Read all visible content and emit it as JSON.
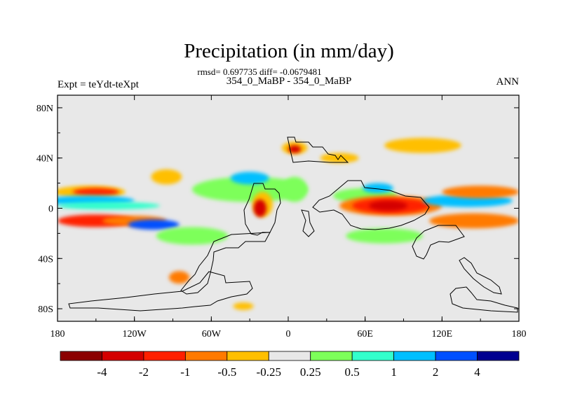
{
  "chart_data": {
    "type": "heatmap",
    "title": "Precipitation (in mm/day)",
    "stats_text": "rmsd= 0.697735 diff= -0.0679481",
    "subtitle": "354_0_MaBP - 354_0_MaBP",
    "left_label": "Expt = teYdt-teXpt",
    "right_label": "ANN",
    "x_axis": {
      "range": [
        -180,
        180
      ],
      "ticks": [
        "180",
        "120W",
        "60W",
        "0",
        "60E",
        "120E",
        "180"
      ]
    },
    "y_axis": {
      "range": [
        -90,
        90
      ],
      "ticks": [
        "80N",
        "40N",
        "0",
        "40S",
        "80S"
      ]
    },
    "colorbar": {
      "levels": [
        "-4",
        "-2",
        "-1",
        "-0.5",
        "-0.25",
        "0.25",
        "0.5",
        "1",
        "2",
        "4"
      ],
      "colors": [
        "#8b0000",
        "#d40000",
        "#ff2000",
        "#ff7a00",
        "#ffbf00",
        "#e8e8e8",
        "#7dff5a",
        "#33ffcc",
        "#00bfff",
        "#0050ff",
        "#000090"
      ]
    },
    "anomalies": [
      {
        "lon": -155,
        "lat": 13,
        "rx": 28,
        "ry": 5,
        "level": 4
      },
      {
        "lon": -150,
        "lat": 13,
        "rx": 18,
        "ry": 3,
        "level": 2
      },
      {
        "lon": -155,
        "lat": 6,
        "rx": 35,
        "ry": 4,
        "level": 8
      },
      {
        "lon": -140,
        "lat": 2,
        "rx": 40,
        "ry": 3,
        "level": 7
      },
      {
        "lon": -150,
        "lat": -10,
        "rx": 30,
        "ry": 5,
        "level": 2
      },
      {
        "lon": -120,
        "lat": -10,
        "rx": 25,
        "ry": 4,
        "level": 3
      },
      {
        "lon": -105,
        "lat": -13,
        "rx": 20,
        "ry": 4,
        "level": 9
      },
      {
        "lon": -95,
        "lat": 25,
        "rx": 12,
        "ry": 6,
        "level": 4
      },
      {
        "lon": -75,
        "lat": -22,
        "rx": 28,
        "ry": 7,
        "level": 6
      },
      {
        "lon": -30,
        "lat": 15,
        "rx": 45,
        "ry": 10,
        "level": 6
      },
      {
        "lon": -30,
        "lat": 24,
        "rx": 15,
        "ry": 5,
        "level": 8
      },
      {
        "lon": -20,
        "lat": 3,
        "rx": 8,
        "ry": 10,
        "level": 4
      },
      {
        "lon": -22,
        "lat": 0,
        "rx": 5,
        "ry": 7,
        "level": 1
      },
      {
        "lon": 5,
        "lat": 48,
        "rx": 10,
        "ry": 5,
        "level": 4
      },
      {
        "lon": 5,
        "lat": 47,
        "rx": 5,
        "ry": 3,
        "level": 1
      },
      {
        "lon": 5,
        "lat": 15,
        "rx": 10,
        "ry": 10,
        "level": 6
      },
      {
        "lon": 60,
        "lat": 10,
        "rx": 25,
        "ry": 6,
        "level": 6
      },
      {
        "lon": 70,
        "lat": 16,
        "rx": 12,
        "ry": 4,
        "level": 8
      },
      {
        "lon": 80,
        "lat": 2,
        "rx": 40,
        "ry": 8,
        "level": 3
      },
      {
        "lon": 80,
        "lat": 2,
        "rx": 30,
        "ry": 6,
        "level": 2
      },
      {
        "lon": 78,
        "lat": 2,
        "rx": 15,
        "ry": 4,
        "level": 1
      },
      {
        "lon": 75,
        "lat": -22,
        "rx": 30,
        "ry": 6,
        "level": 6
      },
      {
        "lon": 140,
        "lat": 6,
        "rx": 35,
        "ry": 5,
        "level": 8
      },
      {
        "lon": 150,
        "lat": 13,
        "rx": 30,
        "ry": 5,
        "level": 3
      },
      {
        "lon": 145,
        "lat": -10,
        "rx": 35,
        "ry": 6,
        "level": 3
      },
      {
        "lon": 105,
        "lat": 50,
        "rx": 30,
        "ry": 6,
        "level": 4
      },
      {
        "lon": 40,
        "lat": 40,
        "rx": 15,
        "ry": 4,
        "level": 4
      },
      {
        "lon": -85,
        "lat": -55,
        "rx": 8,
        "ry": 5,
        "level": 3
      },
      {
        "lon": -35,
        "lat": -78,
        "rx": 8,
        "ry": 3,
        "level": 4
      }
    ]
  }
}
